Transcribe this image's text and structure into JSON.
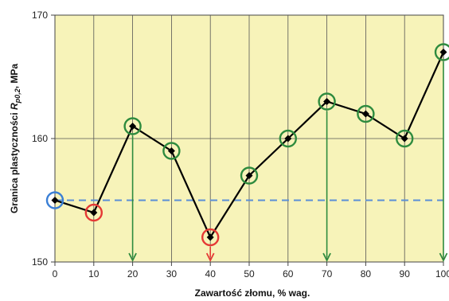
{
  "chart_data": {
    "type": "line",
    "xlabel": {
      "main": "Zawartość złomu, ",
      "unit": "% wag."
    },
    "ylabel": {
      "prefix": "Granica plastyczności ",
      "symbol": "R",
      "subscript": "p0,2",
      "suffix": ", MPa"
    },
    "x_ticks": [
      "0",
      "10",
      "20",
      "30",
      "40",
      "50",
      "60",
      "70",
      "80",
      "90",
      "100"
    ],
    "y_ticks": [
      "150",
      "160",
      "170"
    ],
    "xlim": [
      0,
      100
    ],
    "ylim": [
      150,
      170
    ],
    "grid": true,
    "background_color": "#f7f3b9",
    "series": [
      {
        "x": [
          0,
          10,
          20,
          30,
          40,
          50,
          60,
          70,
          80,
          90,
          100
        ],
        "y": [
          155,
          154,
          161,
          159,
          152,
          157,
          160,
          163,
          162,
          160,
          167
        ],
        "color": "#000000",
        "marker": "diamond"
      }
    ],
    "reference_line": {
      "y": 155,
      "color": "#5b8fd6",
      "style": "dashed"
    },
    "marker_circles": [
      {
        "x": 0,
        "y": 155,
        "color": "#3a7fd5"
      },
      {
        "x": 10,
        "y": 154,
        "color": "#e53935"
      },
      {
        "x": 20,
        "y": 161,
        "color": "#2e8b3e"
      },
      {
        "x": 30,
        "y": 159,
        "color": "#2e8b3e"
      },
      {
        "x": 40,
        "y": 152,
        "color": "#e53935"
      },
      {
        "x": 50,
        "y": 157,
        "color": "#2e8b3e"
      },
      {
        "x": 60,
        "y": 160,
        "color": "#2e8b3e"
      },
      {
        "x": 70,
        "y": 163,
        "color": "#2e8b3e"
      },
      {
        "x": 80,
        "y": 162,
        "color": "#2e8b3e"
      },
      {
        "x": 90,
        "y": 160,
        "color": "#2e8b3e"
      },
      {
        "x": 100,
        "y": 167,
        "color": "#2e8b3e"
      }
    ],
    "drop_arrows": [
      {
        "x": 20,
        "from_y": 161,
        "color": "#2e8b3e"
      },
      {
        "x": 40,
        "from_y": 152,
        "color": "#e53935"
      },
      {
        "x": 70,
        "from_y": 163,
        "color": "#2e8b3e"
      },
      {
        "x": 100,
        "from_y": 167,
        "color": "#2e8b3e"
      }
    ]
  }
}
